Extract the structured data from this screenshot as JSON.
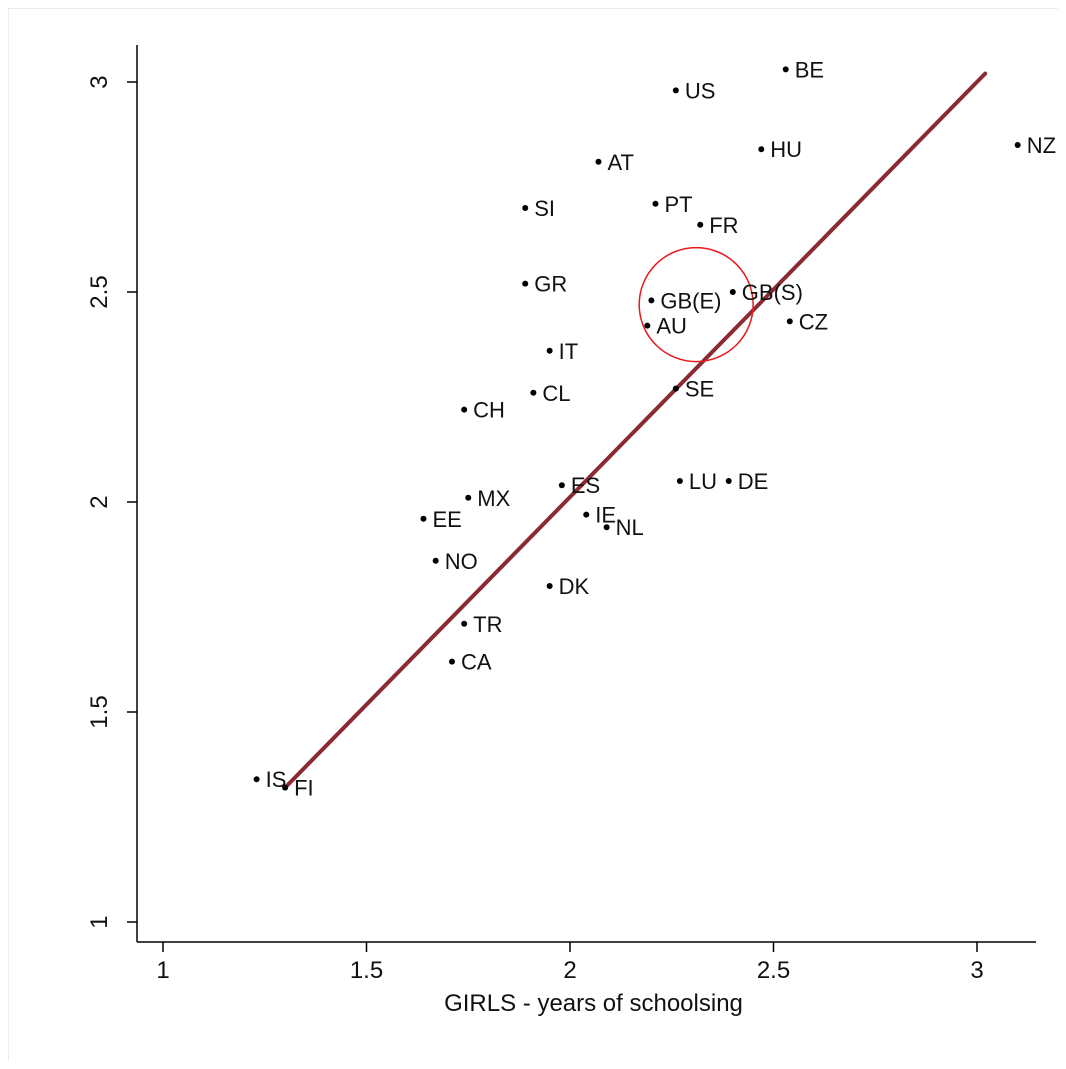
{
  "colors": {
    "fit_line": "#8b2a33",
    "highlight_circle": "#e8191b",
    "points": "#000000",
    "axes": "#000000"
  },
  "chart_data": {
    "type": "scatter",
    "title": "",
    "xlabel": "GIRLS - years of schoolsing",
    "ylabel": "",
    "xlim": [
      0.95,
      3.15
    ],
    "ylim": [
      0.95,
      3.1
    ],
    "x_ticks": [
      1,
      1.5,
      2,
      2.5,
      3
    ],
    "x_tick_labels": [
      "1",
      "1.5",
      "2",
      "2.5",
      "3"
    ],
    "y_ticks": [
      1,
      1.5,
      2,
      2.5,
      3
    ],
    "y_tick_labels": [
      "1",
      "1.5",
      "2",
      "2.5",
      "3"
    ],
    "grid": false,
    "legend": "none",
    "points": [
      {
        "label": "BE",
        "x": 2.53,
        "y": 3.03
      },
      {
        "label": "US",
        "x": 2.26,
        "y": 2.98
      },
      {
        "label": "NZ",
        "x": 3.1,
        "y": 2.85
      },
      {
        "label": "HU",
        "x": 2.47,
        "y": 2.84
      },
      {
        "label": "AT",
        "x": 2.07,
        "y": 2.81
      },
      {
        "label": "SI",
        "x": 1.89,
        "y": 2.7
      },
      {
        "label": "PT",
        "x": 2.21,
        "y": 2.71
      },
      {
        "label": "FR",
        "x": 2.32,
        "y": 2.66
      },
      {
        "label": "GR",
        "x": 1.89,
        "y": 2.52
      },
      {
        "label": "GB(S)",
        "x": 2.4,
        "y": 2.5
      },
      {
        "label": "GB(E)",
        "x": 2.2,
        "y": 2.48
      },
      {
        "label": "AU",
        "x": 2.19,
        "y": 2.42
      },
      {
        "label": "CZ",
        "x": 2.54,
        "y": 2.43
      },
      {
        "label": "IT",
        "x": 1.95,
        "y": 2.36
      },
      {
        "label": "SE",
        "x": 2.26,
        "y": 2.27
      },
      {
        "label": "CL",
        "x": 1.91,
        "y": 2.26
      },
      {
        "label": "CH",
        "x": 1.74,
        "y": 2.22
      },
      {
        "label": "LU",
        "x": 2.27,
        "y": 2.05
      },
      {
        "label": "DE",
        "x": 2.39,
        "y": 2.05
      },
      {
        "label": "ES",
        "x": 1.98,
        "y": 2.04
      },
      {
        "label": "MX",
        "x": 1.75,
        "y": 2.01
      },
      {
        "label": "EE",
        "x": 1.64,
        "y": 1.96
      },
      {
        "label": "IE",
        "x": 2.04,
        "y": 1.97
      },
      {
        "label": "NL",
        "x": 2.09,
        "y": 1.94
      },
      {
        "label": "NO",
        "x": 1.67,
        "y": 1.86
      },
      {
        "label": "DK",
        "x": 1.95,
        "y": 1.8
      },
      {
        "label": "TR",
        "x": 1.74,
        "y": 1.71
      },
      {
        "label": "CA",
        "x": 1.71,
        "y": 1.62
      },
      {
        "label": "IS",
        "x": 1.23,
        "y": 1.34
      },
      {
        "label": "FI",
        "x": 1.3,
        "y": 1.32
      }
    ],
    "fit_line": {
      "x": [
        1.3,
        3.02
      ],
      "y": [
        1.32,
        3.02
      ]
    },
    "highlight": {
      "center_x": 2.31,
      "center_y": 2.47,
      "radius_x": 0.14
    }
  }
}
